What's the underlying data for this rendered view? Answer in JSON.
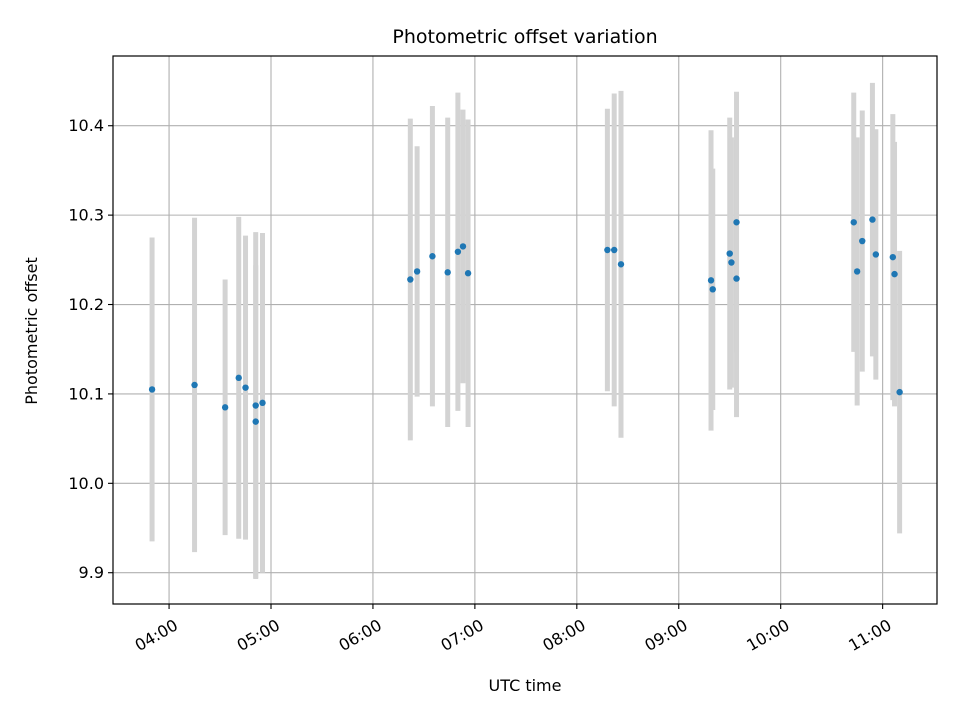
{
  "chart_data": {
    "type": "scatter",
    "title": "Photometric offset variation",
    "xlabel": "UTC time",
    "ylabel": "Photometric offset",
    "x_ticks": [
      "04:00",
      "05:00",
      "06:00",
      "07:00",
      "08:00",
      "09:00",
      "10:00",
      "11:00"
    ],
    "y_ticks": [
      "9.9",
      "10.0",
      "10.1",
      "10.2",
      "10.3",
      "10.4"
    ],
    "xlim": [
      "03:27",
      "11:32"
    ],
    "ylim": [
      9.865,
      10.478
    ],
    "grid": true,
    "point_color": "#1f77b4",
    "errorbar_color": "#d3d3d3",
    "series": [
      {
        "points": [
          {
            "x": "03:50",
            "y": 10.105,
            "err": 0.17
          },
          {
            "x": "04:15",
            "y": 10.11,
            "err": 0.187
          },
          {
            "x": "04:33",
            "y": 10.085,
            "err": 0.143
          },
          {
            "x": "04:41",
            "y": 10.118,
            "err": 0.18
          },
          {
            "x": "04:45",
            "y": 10.107,
            "err": 0.17
          },
          {
            "x": "04:51",
            "y": 10.087,
            "err": 0.194
          },
          {
            "x": "04:51",
            "y": 10.069,
            "err": 0.175
          },
          {
            "x": "04:55",
            "y": 10.09,
            "err": 0.19
          },
          {
            "x": "06:22",
            "y": 10.228,
            "err": 0.18
          },
          {
            "x": "06:26",
            "y": 10.237,
            "err": 0.14
          },
          {
            "x": "06:35",
            "y": 10.254,
            "err": 0.168
          },
          {
            "x": "06:44",
            "y": 10.236,
            "err": 0.173
          },
          {
            "x": "06:50",
            "y": 10.259,
            "err": 0.178
          },
          {
            "x": "06:53",
            "y": 10.265,
            "err": 0.153
          },
          {
            "x": "06:56",
            "y": 10.235,
            "err": 0.172
          },
          {
            "x": "08:18",
            "y": 10.261,
            "err": 0.158
          },
          {
            "x": "08:22",
            "y": 10.261,
            "err": 0.175
          },
          {
            "x": "08:26",
            "y": 10.245,
            "err": 0.194
          },
          {
            "x": "09:19",
            "y": 10.227,
            "err": 0.168
          },
          {
            "x": "09:20",
            "y": 10.217,
            "err": 0.135
          },
          {
            "x": "09:30",
            "y": 10.257,
            "err": 0.152
          },
          {
            "x": "09:31",
            "y": 10.247,
            "err": 0.14
          },
          {
            "x": "09:34",
            "y": 10.292,
            "err": 0.146
          },
          {
            "x": "09:34",
            "y": 10.229,
            "err": 0.155
          },
          {
            "x": "10:43",
            "y": 10.292,
            "err": 0.145
          },
          {
            "x": "10:45",
            "y": 10.237,
            "err": 0.15
          },
          {
            "x": "10:48",
            "y": 10.271,
            "err": 0.146
          },
          {
            "x": "10:54",
            "y": 10.295,
            "err": 0.153
          },
          {
            "x": "10:56",
            "y": 10.256,
            "err": 0.14
          },
          {
            "x": "11:06",
            "y": 10.253,
            "err": 0.16
          },
          {
            "x": "11:07",
            "y": 10.234,
            "err": 0.148
          },
          {
            "x": "11:10",
            "y": 10.102,
            "err": 0.158
          }
        ]
      }
    ]
  }
}
